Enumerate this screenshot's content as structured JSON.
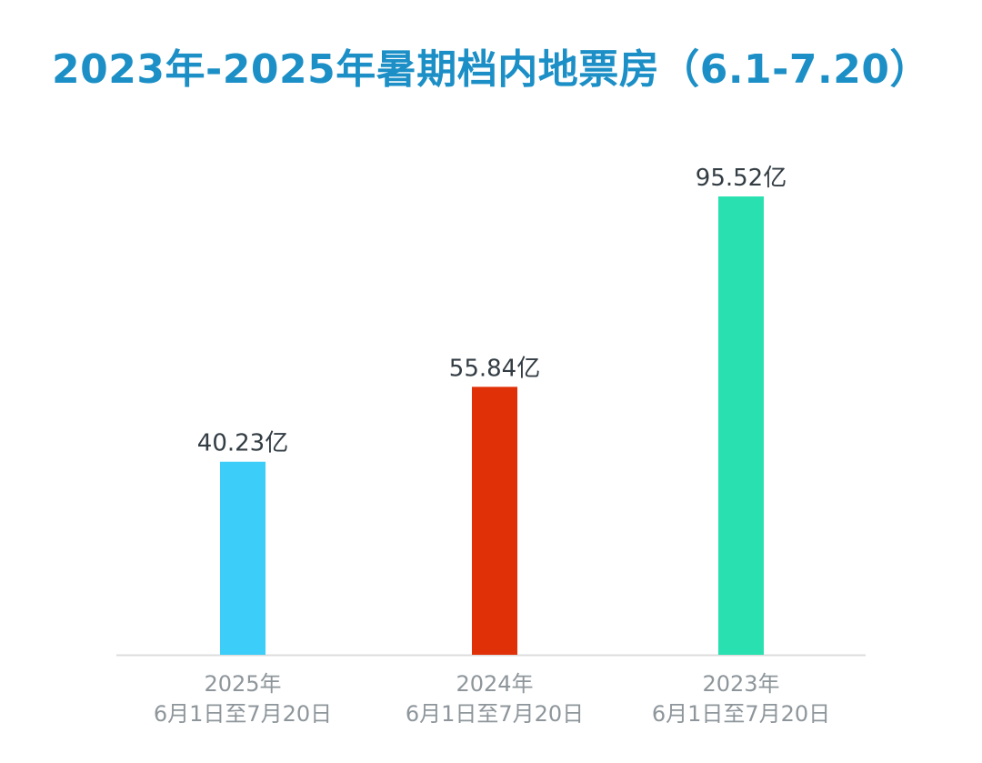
{
  "chart_data": {
    "type": "bar",
    "title": "2023年-2025年暑期档内地票房（6.1-7.20）",
    "categories": [
      {
        "line1": "2025年",
        "line2": "6月1日至7月20日"
      },
      {
        "line1": "2024年",
        "line2": "6月1日至7月20日"
      },
      {
        "line1": "2023年",
        "line2": "6月1日至7月20日"
      }
    ],
    "values": [
      40.23,
      55.84,
      95.52
    ],
    "data_labels": [
      "40.23亿",
      "55.84亿",
      "95.52亿"
    ],
    "bar_colors": [
      "#3dcdf9",
      "#e03008",
      "#29e0b0"
    ],
    "ylim": [
      0,
      100
    ],
    "grid": false,
    "legend": "none",
    "xlabel": "",
    "ylabel": ""
  }
}
